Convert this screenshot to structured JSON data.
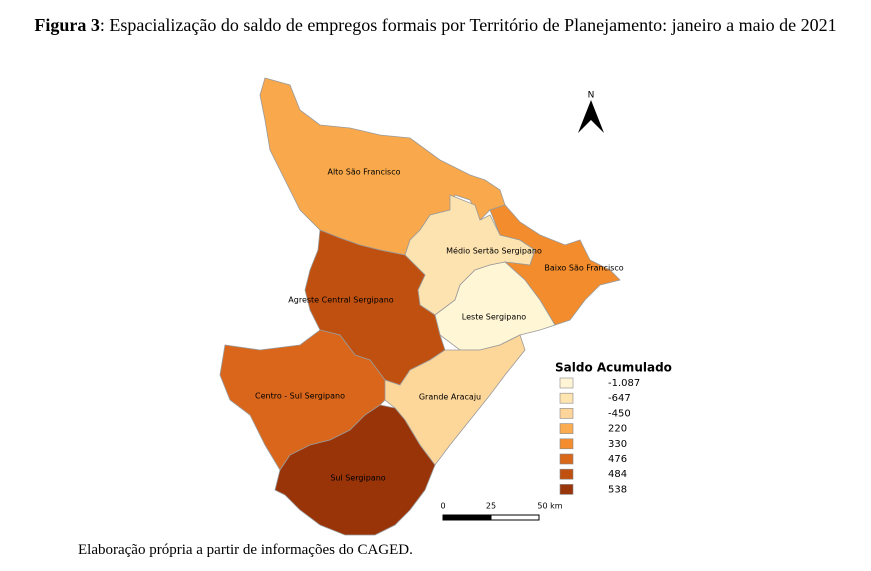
{
  "header": {
    "label": "Figura 3",
    "title": ": Espacialização do saldo de empregos formais por Território de Planejamento: janeiro a maio de 2021"
  },
  "map": {
    "regions": [
      {
        "label": "Alto São Francisco",
        "color": "#f9a94b"
      },
      {
        "label": "Médio Sertão Sergipano",
        "color": "#fde3b0"
      },
      {
        "label": "Baixo São Francisco",
        "color": "#f28c2c"
      },
      {
        "label": "Leste Sergipano",
        "color": "#fff6d5"
      },
      {
        "label": "Agreste Central Sergipano",
        "color": "#c0500f"
      },
      {
        "label": "Centro - Sul Sergipano",
        "color": "#d9661a"
      },
      {
        "label": "Grande Aracaju",
        "color": "#fdd69a"
      },
      {
        "label": "Sul Sergipano",
        "color": "#993308"
      }
    ],
    "north": "N",
    "legend": {
      "title": "Saldo Acumulado",
      "items": [
        {
          "label": "-1.087",
          "color": "#fff5d6"
        },
        {
          "label": "-647",
          "color": "#fee4b0"
        },
        {
          "label": "-450",
          "color": "#fdd49a"
        },
        {
          "label": "220",
          "color": "#fbab50"
        },
        {
          "label": "330",
          "color": "#f58d2e"
        },
        {
          "label": "476",
          "color": "#d9681b"
        },
        {
          "label": "484",
          "color": "#bf500f"
        },
        {
          "label": "538",
          "color": "#99350a"
        }
      ]
    },
    "scale": [
      "0",
      "25",
      "50 km"
    ]
  },
  "caption": "Elaboração própria a partir de informações do CAGED."
}
